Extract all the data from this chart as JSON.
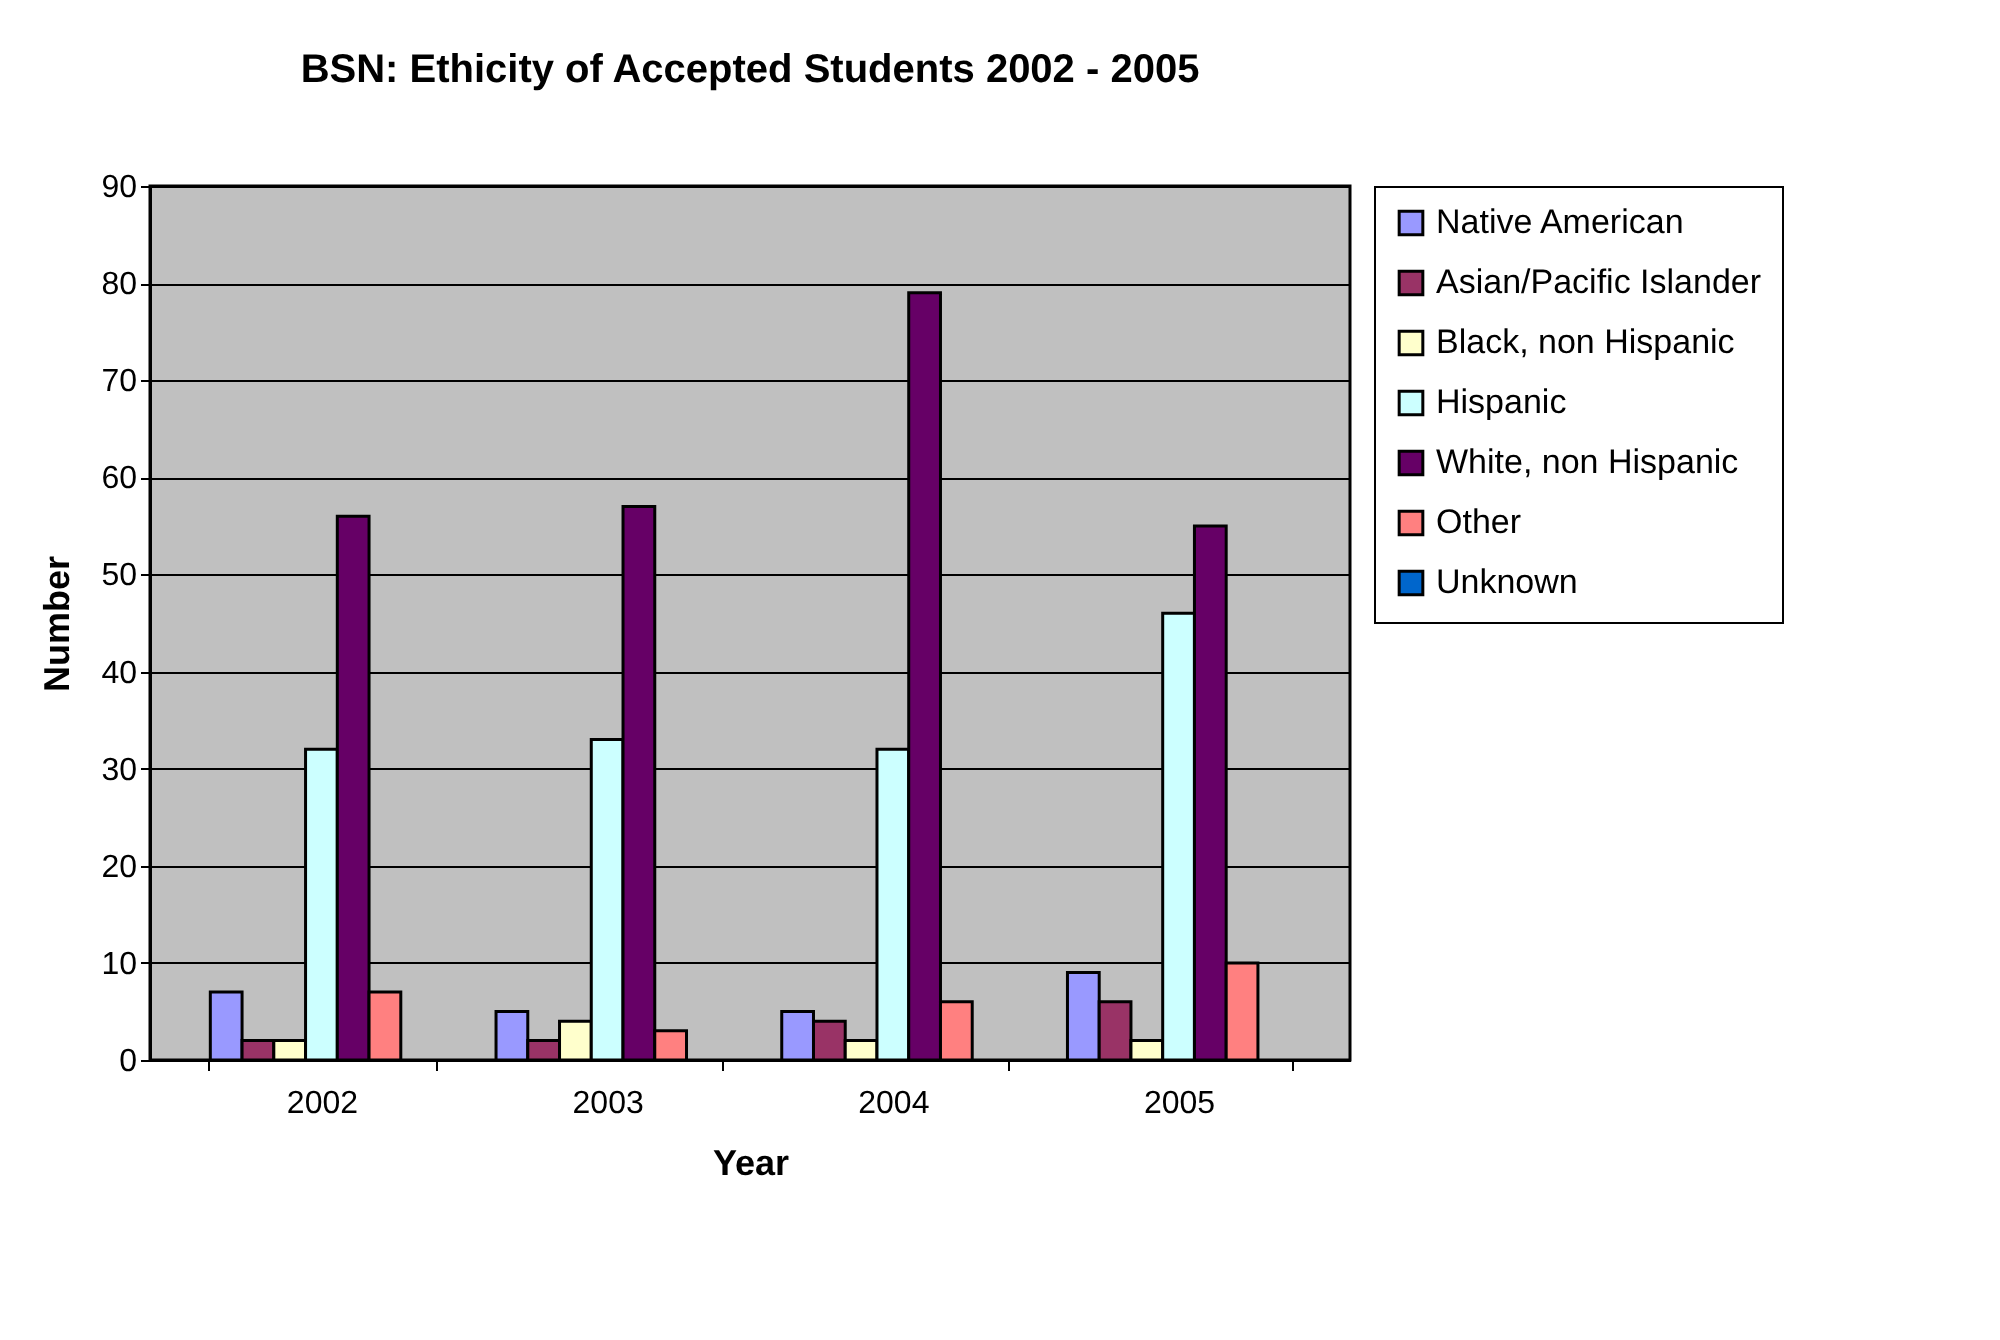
{
  "chart_data": {
    "type": "bar",
    "title": "BSN: Ethicity of Accepted Students 2002 - 2005",
    "xlabel": "Year",
    "ylabel": "Number",
    "categories": [
      "2002",
      "2003",
      "2004",
      "2005"
    ],
    "series": [
      {
        "name": "Native American",
        "color": "#9999ff",
        "values": [
          7,
          5,
          5,
          9
        ]
      },
      {
        "name": "Asian/Pacific Islander",
        "color": "#993366",
        "values": [
          2,
          2,
          4,
          6
        ]
      },
      {
        "name": "Black, non Hispanic",
        "color": "#ffffcc",
        "values": [
          2,
          4,
          2,
          2
        ]
      },
      {
        "name": "Hispanic",
        "color": "#ccffff",
        "values": [
          32,
          33,
          32,
          46
        ]
      },
      {
        "name": "White, non Hispanic",
        "color": "#660066",
        "values": [
          56,
          57,
          79,
          55
        ]
      },
      {
        "name": "Other",
        "color": "#ff8080",
        "values": [
          7,
          3,
          6,
          10
        ]
      },
      {
        "name": "Unknown",
        "color": "#0066cc",
        "values": [
          null,
          null,
          null,
          null
        ]
      }
    ],
    "ylim": [
      0,
      90
    ],
    "yticks": [
      0,
      10,
      20,
      30,
      40,
      50,
      60,
      70,
      80,
      90
    ],
    "grid": "y",
    "legend": "right"
  }
}
